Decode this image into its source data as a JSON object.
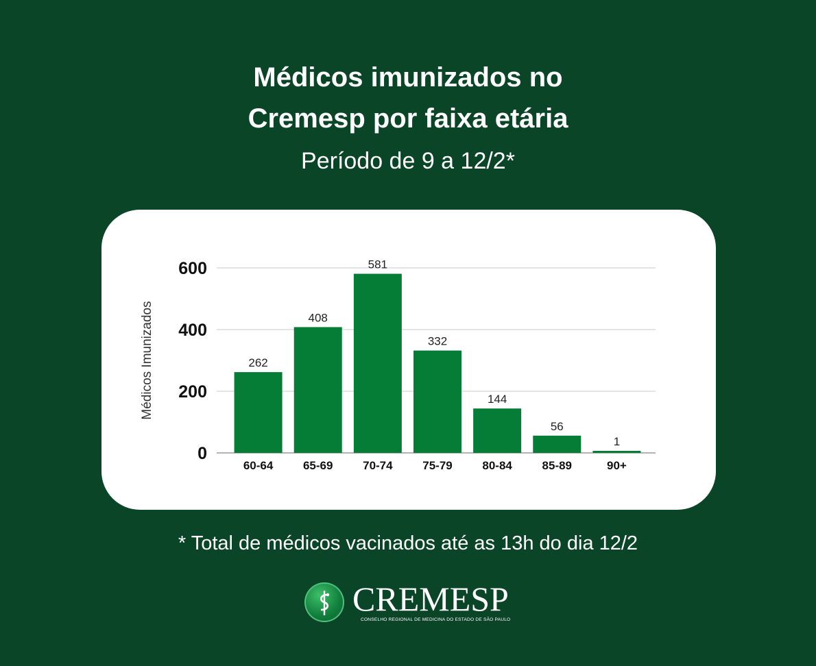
{
  "header": {
    "title_line1": "Médicos imunizados no",
    "title_line2": "Cremesp por faixa etária",
    "subtitle": "Período de 9 a 12/2*"
  },
  "chart_data": {
    "type": "bar",
    "categories": [
      "60-64",
      "65-69",
      "70-74",
      "75-79",
      "80-84",
      "85-89",
      "90+"
    ],
    "values": [
      262,
      408,
      581,
      332,
      144,
      56,
      1
    ],
    "ylabel": "Médicos Imunizados",
    "xlabel": "",
    "ylim": [
      0,
      600
    ],
    "yticks": [
      0,
      200,
      400,
      600
    ],
    "grid": true,
    "bar_color": "#067d36"
  },
  "footnote": "* Total de médicos vacinados até as 13h do dia 12/2",
  "logo": {
    "wordmark": "CREMESP",
    "tagline": "CONSELHO REGIONAL DE MEDICINA DO ESTADO DE SÃO PAULO",
    "icon": "caduceus-icon"
  }
}
